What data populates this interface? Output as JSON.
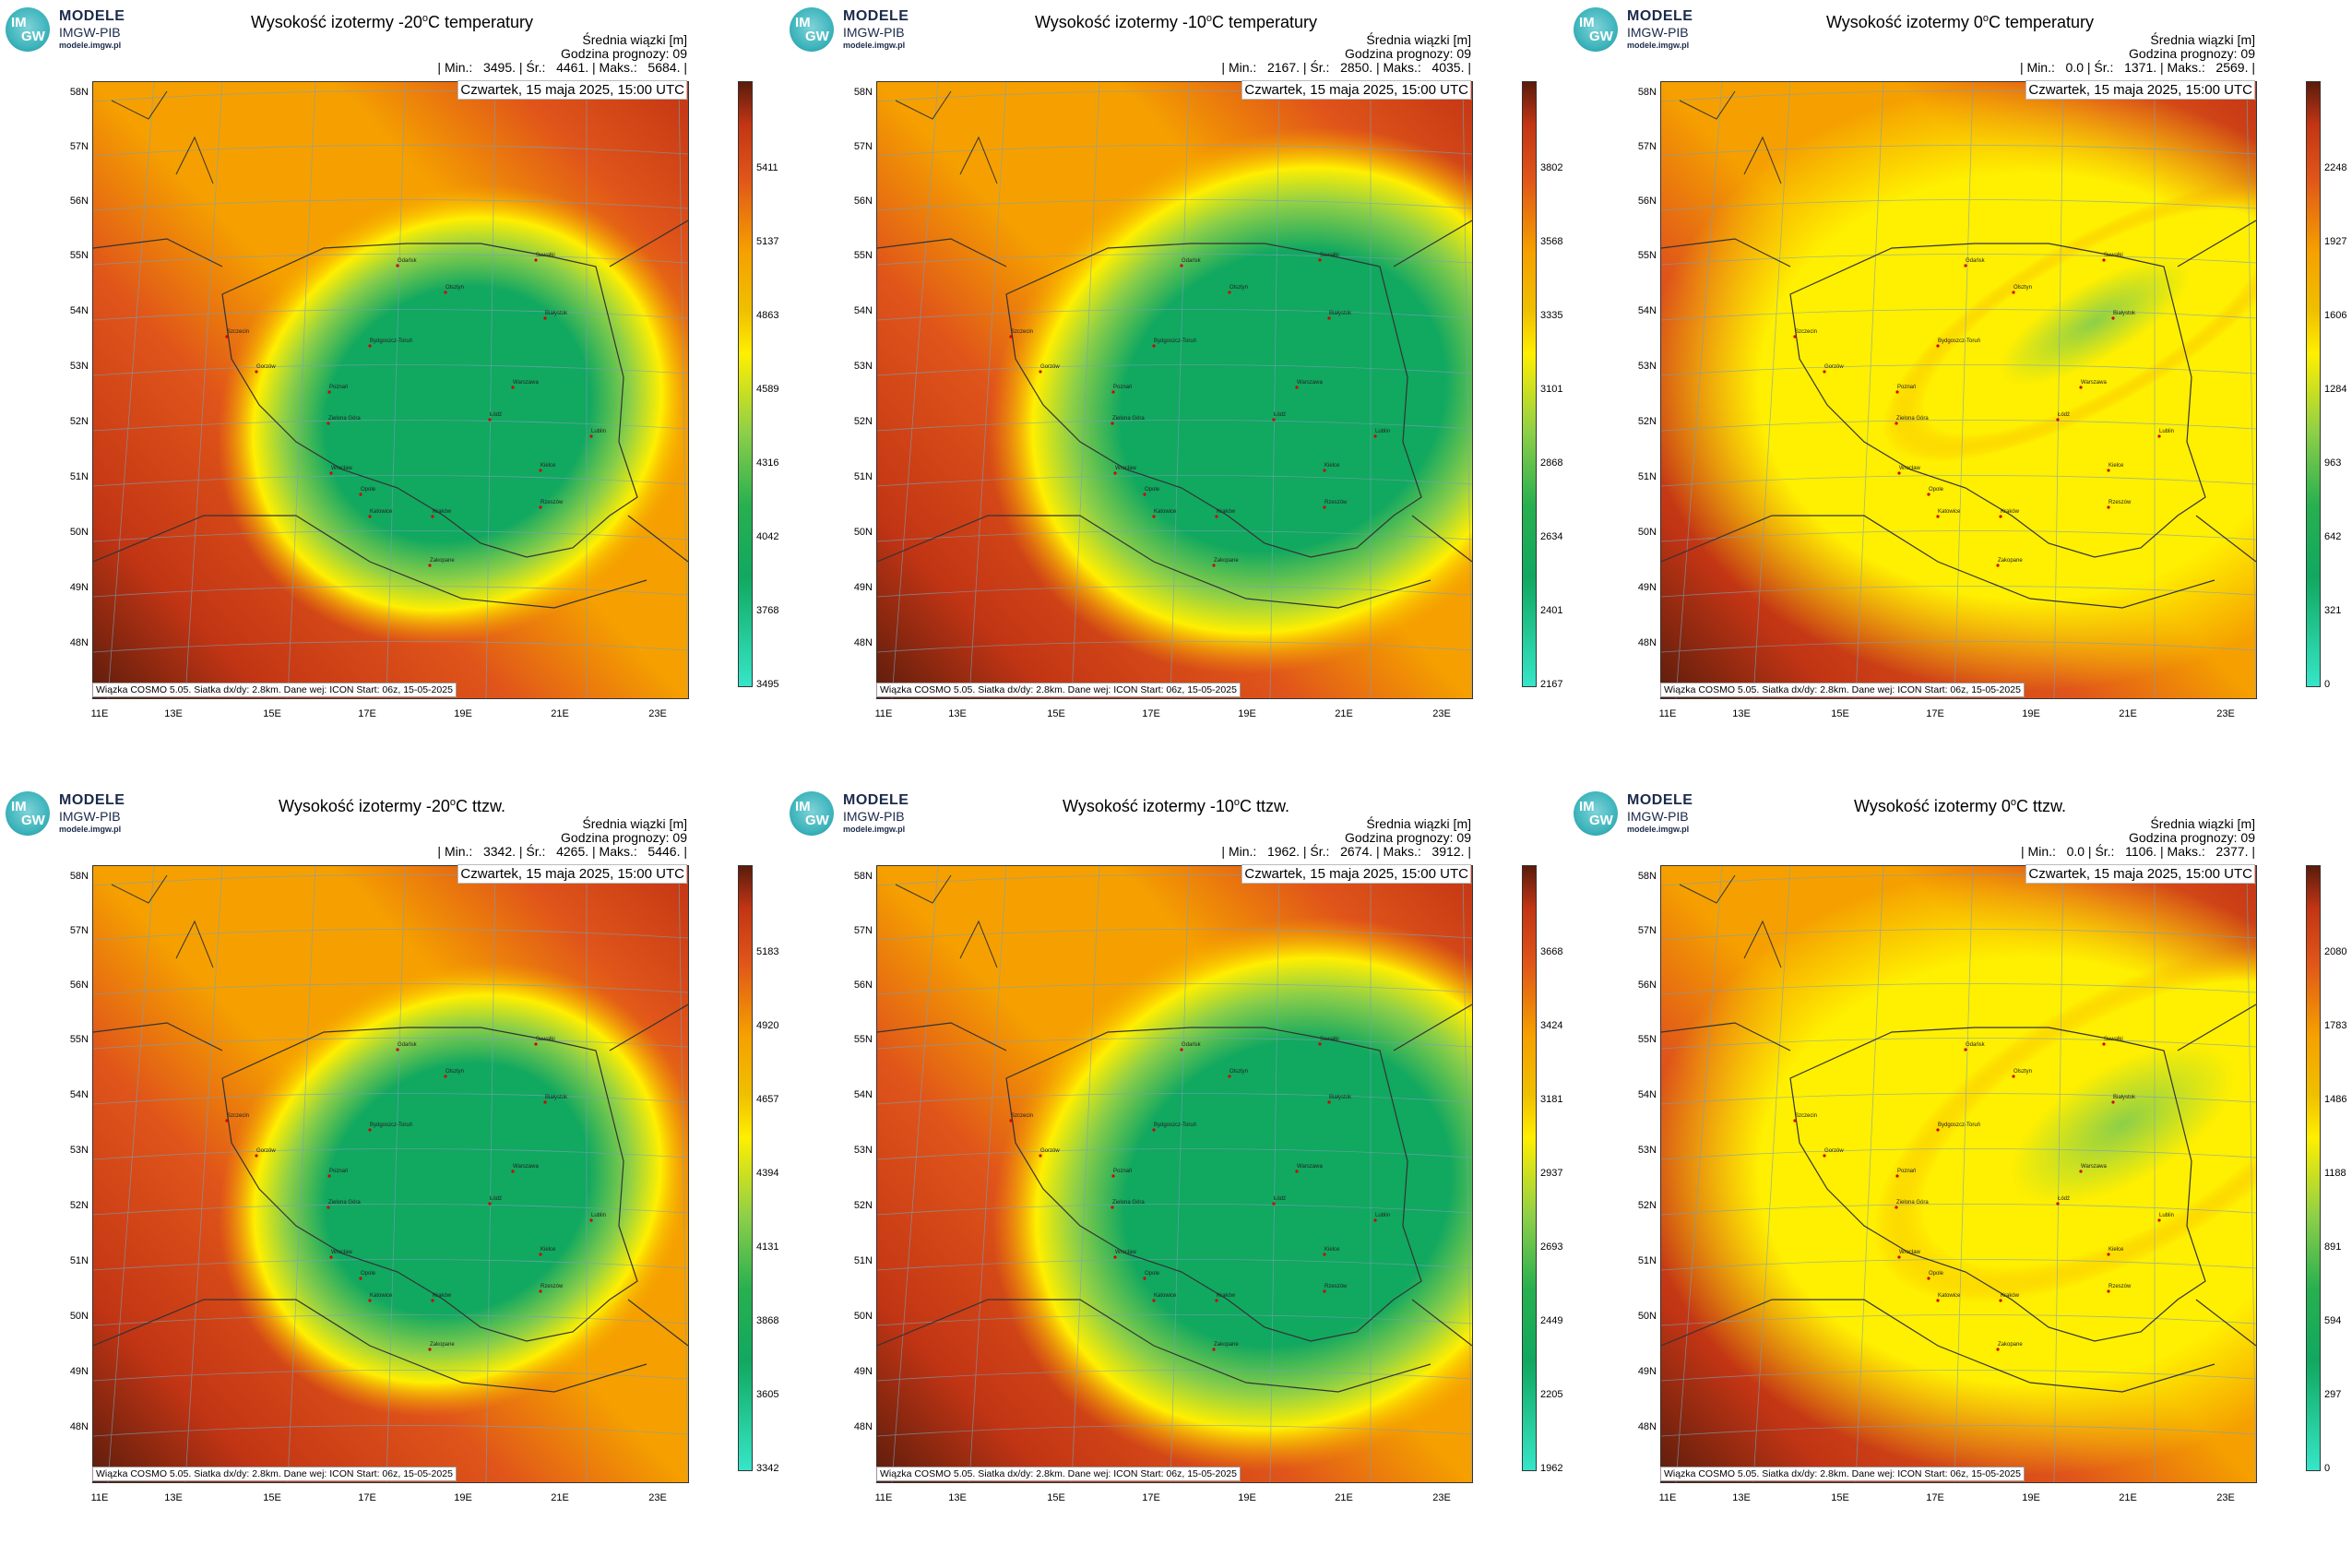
{
  "logo": {
    "brand": "MODELE",
    "org": "IMGW-PIB",
    "url": "modele.imgw.pl",
    "badge_top": "IM",
    "badge_bottom": "GW"
  },
  "colors": {
    "teal": "#36e6c8",
    "green": "#11a860",
    "lightgreen": "#8dcf48",
    "yellow": "#ffef00",
    "orange": "#f5a000",
    "darkorange": "#e0551a",
    "red": "#c23514",
    "darkred": "#5a1c0c"
  },
  "common": {
    "date": "Czwartek, 15 maja 2025, 15:00 UTC",
    "footer": "Wiązka COSMO 5.05. Siatka dx/dy: 2.8km. Dane wej: ICON Start: 06z, 15-05-2025",
    "lat_labels": [
      "58N",
      "57N",
      "56N",
      "55N",
      "54N",
      "53N",
      "52N",
      "51N",
      "50N",
      "49N",
      "48N"
    ],
    "lon_labels": [
      "11E",
      "13E",
      "15E",
      "17E",
      "19E",
      "21E",
      "23E"
    ],
    "cities": [
      "Gdańsk",
      "Olsztyn",
      "Suwałki",
      "Białystok",
      "Szczecin",
      "Bydgoszcz-Toruń",
      "Gorzów",
      "Poznań",
      "Warszawa",
      "Zielona Góra",
      "Łódź",
      "Lublin",
      "Wrocław",
      "Kielce",
      "Opole",
      "Katowice",
      "Kraków",
      "Rzeszów",
      "Zakopane"
    ],
    "info_line1": "Średnia wiązki [m]",
    "info_line2": "Godzina prognozy: 09",
    "min_label": "Min.:",
    "avg_label": "Śr.:",
    "max_label": "Maks.:"
  },
  "panels": [
    {
      "title_pre": "Wysokość izotermy -20",
      "title_deg": "o",
      "title_post": "C temperatury",
      "min": "3495.",
      "avg": "4461.",
      "max": "5684.",
      "ticks": [
        "5411",
        "5137",
        "4863",
        "4589",
        "4316",
        "4042",
        "3768",
        "3495"
      ]
    },
    {
      "title_pre": "Wysokość izotermy -10",
      "title_deg": "o",
      "title_post": "C temperatury",
      "min": "2167.",
      "avg": "2850.",
      "max": "4035.",
      "ticks": [
        "3802",
        "3568",
        "3335",
        "3101",
        "2868",
        "2634",
        "2401",
        "2167"
      ]
    },
    {
      "title_pre": "Wysokość izotermy 0",
      "title_deg": "o",
      "title_post": "C temperatury",
      "min": "0.0",
      "avg": "1371.",
      "max": "2569.",
      "ticks": [
        "2248",
        "1927",
        "1606",
        "1284",
        "963",
        "642",
        "321",
        "0"
      ]
    },
    {
      "title_pre": "Wysokość izotermy -20",
      "title_deg": "o",
      "title_post": "C ttzw.",
      "min": "3342.",
      "avg": "4265.",
      "max": "5446.",
      "ticks": [
        "5183",
        "4920",
        "4657",
        "4394",
        "4131",
        "3868",
        "3605",
        "3342"
      ]
    },
    {
      "title_pre": "Wysokość izotermy -10",
      "title_deg": "o",
      "title_post": "C ttzw.",
      "min": "1962.",
      "avg": "2674.",
      "max": "3912.",
      "ticks": [
        "3668",
        "3424",
        "3181",
        "2937",
        "2693",
        "2449",
        "2205",
        "1962"
      ]
    },
    {
      "title_pre": "Wysokość izotermy 0",
      "title_deg": "o",
      "title_post": "C ttzw.",
      "min": "0.0",
      "avg": "1106.",
      "max": "2377.",
      "ticks": [
        "2080",
        "1783",
        "1486",
        "1188",
        "891",
        "594",
        "297",
        "0"
      ]
    }
  ]
}
